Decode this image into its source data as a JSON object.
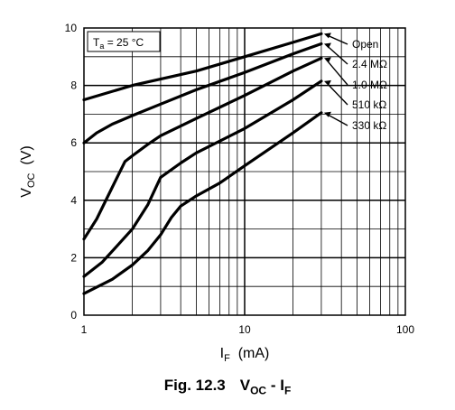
{
  "chart_data": {
    "type": "line",
    "x_scale": "log",
    "xlim": [
      1,
      100
    ],
    "ylim": [
      0,
      10
    ],
    "x_ticks": [
      1,
      10,
      100
    ],
    "x_tick_labels": [
      "1",
      "10",
      "100"
    ],
    "y_ticks": [
      0,
      2,
      4,
      6,
      8,
      10
    ],
    "y_tick_labels": [
      "0",
      "2",
      "4",
      "6",
      "8",
      "10"
    ],
    "xlabel": {
      "main": "I",
      "sub": "F",
      "unit": "(mA)"
    },
    "ylabel": {
      "main": "V",
      "sub": "OC",
      "unit": "(V)"
    },
    "grid": true,
    "annotation": {
      "main": "T",
      "sub": "a",
      "rest": " = 25 °C"
    },
    "series": [
      {
        "name": "Open",
        "x": [
          1,
          2,
          5,
          10,
          20,
          30
        ],
        "y": [
          7.5,
          8.0,
          8.5,
          9.0,
          9.5,
          9.8
        ]
      },
      {
        "name": "2.4 MΩ",
        "x": [
          1,
          1.2,
          1.5,
          2,
          3,
          5,
          10,
          20,
          30
        ],
        "y": [
          6.0,
          6.35,
          6.65,
          6.95,
          7.35,
          7.85,
          8.45,
          9.1,
          9.45
        ]
      },
      {
        "name": "1.0 MΩ",
        "x": [
          1,
          1.2,
          1.5,
          1.8,
          2,
          2.5,
          3,
          5,
          10,
          20,
          30
        ],
        "y": [
          2.65,
          3.35,
          4.45,
          5.35,
          5.55,
          5.95,
          6.25,
          6.85,
          7.65,
          8.5,
          8.95
        ]
      },
      {
        "name": "510 kΩ",
        "x": [
          1,
          1.3,
          1.6,
          2,
          2.5,
          3,
          4,
          5,
          10,
          20,
          30
        ],
        "y": [
          1.35,
          1.85,
          2.4,
          3.0,
          3.85,
          4.8,
          5.3,
          5.65,
          6.5,
          7.5,
          8.15
        ]
      },
      {
        "name": "330 kΩ",
        "x": [
          1,
          1.5,
          2,
          2.5,
          3,
          3.5,
          4,
          5,
          7,
          10,
          20,
          30
        ],
        "y": [
          0.75,
          1.25,
          1.75,
          2.25,
          2.8,
          3.4,
          3.8,
          4.15,
          4.6,
          5.2,
          6.35,
          7.05
        ]
      }
    ]
  },
  "caption": {
    "fig": "Fig. 12.3",
    "t1_main": "V",
    "t1_sub": "OC",
    "t2_sep": " - ",
    "t2_main": "I",
    "t2_sub": "F"
  }
}
